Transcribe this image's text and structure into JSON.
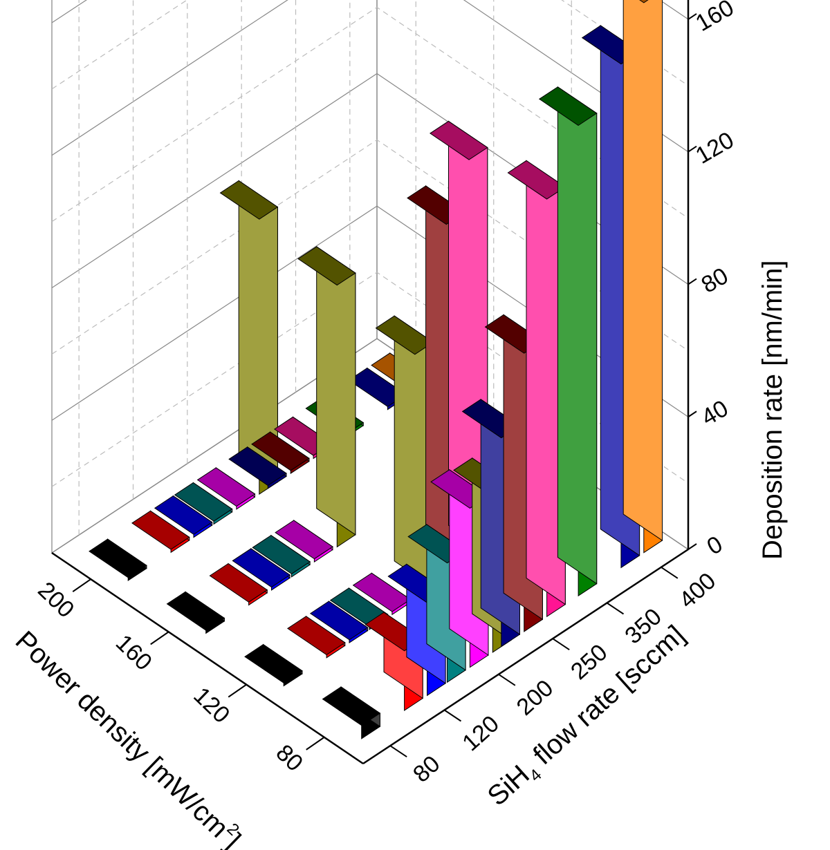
{
  "chart_data": {
    "type": "bar3d",
    "power_label": "Power density [mW/cm",
    "power_label_sup": "2",
    "power_label_end": "]",
    "flow_label_a": "SiH",
    "flow_label_sub": "4",
    "flow_label_b": " flow rate [sccm]",
    "rate_label": "Deposition rate [nm/min]",
    "power_ticks": [
      "80",
      "120",
      "160",
      "200"
    ],
    "flow_ticks": [
      "80",
      "120",
      "200",
      "250",
      "350",
      "400"
    ],
    "rate_ticks": [
      "0",
      "40",
      "80",
      "120",
      "160"
    ],
    "rate_range": [
      0,
      170
    ],
    "grid": "dashed",
    "series": [
      {
        "flow": "80",
        "color": "#000000",
        "values": [
          [
            80,
            4
          ],
          [
            120,
            0
          ],
          [
            160,
            0
          ],
          [
            200,
            0
          ]
        ]
      },
      {
        "flow": "120",
        "color": "#ff0000",
        "values": [
          [
            80,
            18
          ],
          [
            120,
            0
          ],
          [
            160,
            0
          ],
          [
            200,
            0
          ]
        ]
      },
      {
        "flow": "120",
        "color": "#0000ff",
        "values": [
          [
            80,
            28
          ],
          [
            120,
            0
          ],
          [
            160,
            0
          ],
          [
            200,
            0
          ]
        ]
      },
      {
        "flow": "200",
        "color": "#008080",
        "values": [
          [
            80,
            36
          ],
          [
            120,
            0
          ],
          [
            160,
            0
          ],
          [
            200,
            0
          ]
        ]
      },
      {
        "flow": "200",
        "color": "#ff00ff",
        "values": [
          [
            80,
            48
          ],
          [
            120,
            0
          ],
          [
            160,
            0
          ],
          [
            200,
            0
          ]
        ]
      },
      {
        "flow": "200",
        "color": "#808000",
        "values": [
          [
            80,
            47
          ],
          [
            120,
            74
          ],
          [
            160,
            79
          ],
          [
            200,
            83
          ]
        ]
      },
      {
        "flow": "250",
        "color": "#000080",
        "values": [
          [
            80,
            63
          ],
          [
            200,
            0
          ]
        ]
      },
      {
        "flow": "250",
        "color": "#800000",
        "values": [
          [
            80,
            84
          ],
          [
            120,
            107
          ],
          [
            200,
            0
          ]
        ]
      },
      {
        "flow": "250",
        "color": "#ff1493",
        "values": [
          [
            80,
            126
          ],
          [
            120,
            122
          ],
          [
            200,
            0
          ]
        ]
      },
      {
        "flow": "350",
        "color": "#008000",
        "values": [
          [
            80,
            142
          ],
          [
            200,
            0
          ]
        ]
      },
      {
        "flow": "400",
        "color": "#0000a0",
        "values": [
          [
            80,
            152
          ],
          [
            200,
            0
          ]
        ]
      },
      {
        "flow": "400",
        "color": "#ff8000",
        "values": [
          [
            80,
            166
          ],
          [
            200,
            0
          ]
        ]
      }
    ]
  }
}
